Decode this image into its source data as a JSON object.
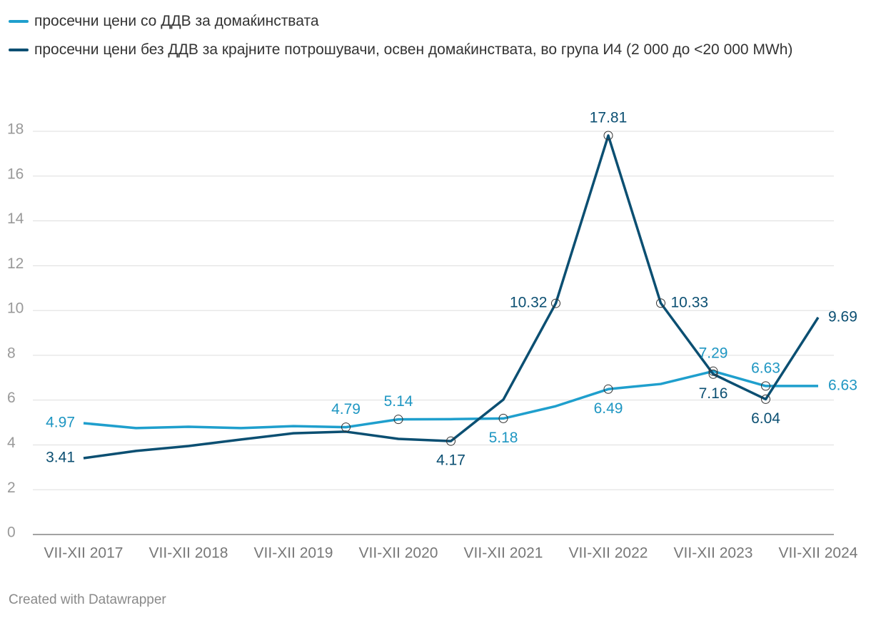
{
  "chart_data": {
    "type": "line",
    "categories": [
      "VII-XII 2017",
      null,
      "VII-XII 2018",
      null,
      "VII-XII 2019",
      null,
      "VII-XII 2020",
      null,
      "VII-XII 2021",
      null,
      "VII-XII 2022",
      null,
      "VII-XII 2023",
      null,
      "VII-XII 2024"
    ],
    "series": [
      {
        "name": "просечни цени со ДДВ за домаќинствата",
        "color": "#1f9fcd",
        "values": [
          4.97,
          4.75,
          4.81,
          4.75,
          4.84,
          4.79,
          5.14,
          5.15,
          5.18,
          5.73,
          6.49,
          6.72,
          7.29,
          6.63,
          6.63
        ],
        "value_labels": [
          "4.97",
          null,
          null,
          null,
          null,
          "4.79",
          "5.14",
          null,
          "5.18",
          null,
          "6.49",
          null,
          "7.29",
          "6.63",
          "6.63"
        ]
      },
      {
        "name": "просечни цени без ДДВ за крајните потрошувачи, освен домаќинствата, во група И4 (2 000 до <20 000 MWh)",
        "color": "#0b4f72",
        "values": [
          3.41,
          3.73,
          3.95,
          4.24,
          4.52,
          4.59,
          4.27,
          4.17,
          6.02,
          10.32,
          17.81,
          10.33,
          7.16,
          6.04,
          9.69
        ],
        "value_labels": [
          "3.41",
          null,
          null,
          null,
          null,
          null,
          null,
          "4.17",
          null,
          "10.32",
          "17.81",
          "10.33",
          "7.16",
          "6.04",
          "9.69"
        ]
      }
    ],
    "ylim": [
      0,
      18
    ],
    "yticks": [
      0,
      2,
      4,
      6,
      8,
      10,
      12,
      14,
      16,
      18
    ],
    "grid": true,
    "footer": "Created with Datawrapper"
  }
}
